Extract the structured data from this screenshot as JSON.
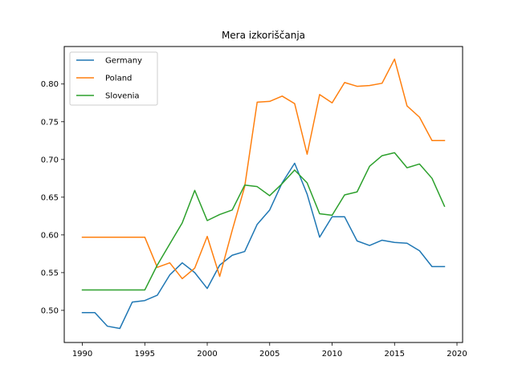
{
  "chart_data": {
    "type": "line",
    "title": "Mera izkoriščanja",
    "xlabel": "",
    "ylabel": "",
    "xlim": [
      1988.55,
      2020.45
    ],
    "ylim": [
      0.4574,
      0.8497
    ],
    "x_ticks": [
      1990,
      1995,
      2000,
      2005,
      2010,
      2015,
      2020
    ],
    "y_ticks": [
      0.5,
      0.55,
      0.6,
      0.65,
      0.7,
      0.75,
      0.8
    ],
    "x_tick_labels": [
      "1990",
      "1995",
      "2000",
      "2005",
      "2010",
      "2015",
      "2020"
    ],
    "y_tick_labels": [
      "0.50",
      "0.55",
      "0.60",
      "0.65",
      "0.70",
      "0.75",
      "0.80"
    ],
    "grid": false,
    "legend_position": "top-left",
    "x": [
      1990,
      1991,
      1992,
      1993,
      1994,
      1995,
      1996,
      1997,
      1998,
      1999,
      2000,
      2001,
      2002,
      2003,
      2004,
      2005,
      2006,
      2007,
      2008,
      2009,
      2010,
      2011,
      2012,
      2013,
      2014,
      2015,
      2016,
      2017,
      2018,
      2019
    ],
    "series": [
      {
        "name": "Germany",
        "color": "#1f77b4",
        "values": [
          0.497,
          0.497,
          0.479,
          0.476,
          0.511,
          0.513,
          0.52,
          0.547,
          0.563,
          0.55,
          0.529,
          0.56,
          0.573,
          0.578,
          0.614,
          0.633,
          0.669,
          0.695,
          0.654,
          0.597,
          0.624,
          0.624,
          0.592,
          0.586,
          0.593,
          0.59,
          0.589,
          0.579,
          0.558,
          0.558
        ]
      },
      {
        "name": "Poland",
        "color": "#ff7f0e",
        "values": [
          0.597,
          0.597,
          0.597,
          0.597,
          0.597,
          0.597,
          0.557,
          0.563,
          0.542,
          0.556,
          0.598,
          0.545,
          0.606,
          0.664,
          0.776,
          0.777,
          0.784,
          0.774,
          0.707,
          0.786,
          0.775,
          0.802,
          0.797,
          0.798,
          0.801,
          0.833,
          0.771,
          0.756,
          0.725,
          0.725
        ]
      },
      {
        "name": "Slovenia",
        "color": "#2ca02c",
        "values": [
          0.527,
          0.527,
          0.527,
          0.527,
          0.527,
          0.527,
          0.56,
          0.588,
          0.616,
          0.659,
          0.619,
          0.627,
          0.633,
          0.666,
          0.664,
          0.652,
          0.668,
          0.686,
          0.669,
          0.628,
          0.626,
          0.653,
          0.657,
          0.691,
          0.705,
          0.709,
          0.689,
          0.694,
          0.675,
          0.638
        ]
      }
    ]
  }
}
